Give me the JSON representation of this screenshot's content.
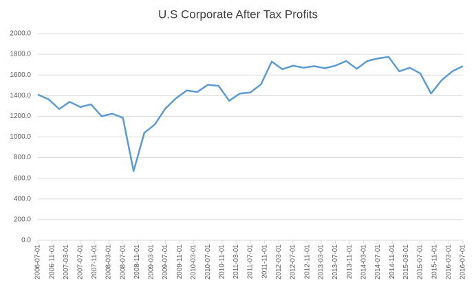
{
  "chart_data": {
    "type": "line",
    "title": "U.S Corporate After Tax Profits",
    "x": [
      "2006-07-01",
      "2006-10-01",
      "2007-01-01",
      "2007-04-01",
      "2007-07-01",
      "2007-10-01",
      "2008-01-01",
      "2008-04-01",
      "2008-07-01",
      "2008-10-01",
      "2009-01-01",
      "2009-04-01",
      "2009-07-01",
      "2009-10-01",
      "2010-01-01",
      "2010-04-01",
      "2010-07-01",
      "2010-10-01",
      "2011-01-01",
      "2011-04-01",
      "2011-07-01",
      "2011-10-01",
      "2012-01-01",
      "2012-04-01",
      "2012-07-01",
      "2012-10-01",
      "2013-01-01",
      "2013-04-01",
      "2013-07-01",
      "2013-10-01",
      "2014-01-01",
      "2014-04-01",
      "2014-07-01",
      "2014-10-01",
      "2015-01-01",
      "2015-04-01",
      "2015-07-01",
      "2015-10-01",
      "2016-01-01",
      "2016-04-01",
      "2016-07-01"
    ],
    "series": [
      {
        "color": "#5b9bd5",
        "values": [
          1410,
          1365,
          1270,
          1340,
          1290,
          1315,
          1200,
          1225,
          1185,
          670,
          1040,
          1120,
          1275,
          1375,
          1450,
          1435,
          1505,
          1495,
          1350,
          1420,
          1430,
          1510,
          1730,
          1655,
          1690,
          1670,
          1685,
          1665,
          1690,
          1735,
          1660,
          1735,
          1760,
          1775,
          1635,
          1670,
          1615,
          1420,
          1550,
          1635,
          1685
        ]
      }
    ],
    "xlim": [
      "2006-07-01",
      "2016-07-01"
    ],
    "xticks": [
      "2006-07-01",
      "2006-11-01",
      "2007-03-01",
      "2007-07-01",
      "2007-11-01",
      "2008-03-01",
      "2008-07-01",
      "2008-11-01",
      "2009-03-01",
      "2009-07-01",
      "2009-11-01",
      "2010-03-01",
      "2010-07-01",
      "2010-11-01",
      "2011-03-01",
      "2011-07-01",
      "2011-11-01",
      "2012-03-01",
      "2012-07-01",
      "2012-11-01",
      "2013-03-01",
      "2013-07-01",
      "2013-11-01",
      "2014-03-01",
      "2014-07-01",
      "2014-11-01",
      "2015-03-01",
      "2015-07-01",
      "2015-11-01",
      "2016-03-01",
      "2016-07-01"
    ],
    "ylim": [
      0,
      2000
    ],
    "yticks": [
      {
        "value": 0,
        "label": "0.0"
      },
      {
        "value": 200,
        "label": "200.0"
      },
      {
        "value": 400,
        "label": "400.0"
      },
      {
        "value": 600,
        "label": "600.0"
      },
      {
        "value": 800,
        "label": "800.0"
      },
      {
        "value": 1000,
        "label": "1000.0"
      },
      {
        "value": 1200,
        "label": "1200.0"
      },
      {
        "value": 1400,
        "label": "1400.0"
      },
      {
        "value": 1600,
        "label": "1600.0"
      },
      {
        "value": 1800,
        "label": "1800.0"
      },
      {
        "value": 2000,
        "label": "2000.0"
      }
    ],
    "grid": true
  }
}
